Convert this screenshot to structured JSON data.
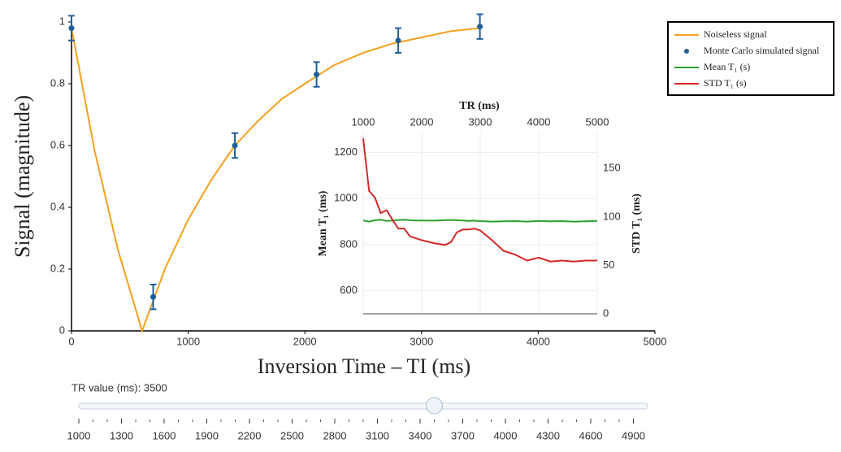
{
  "chart_data": [
    {
      "type": "line",
      "xlabel": "Inversion Time – TI (ms)",
      "ylabel": "Signal (magnitude)",
      "xlim": [
        0,
        5000
      ],
      "xticks": [
        0,
        1000,
        2000,
        3000,
        4000,
        5000
      ],
      "ylim": [
        0,
        1
      ],
      "yticks": [
        0,
        0.2,
        0.4,
        0.6,
        0.8,
        1
      ],
      "grid": false,
      "legend": "outside-right",
      "series": [
        {
          "name": "Noiseless signal",
          "type": "line",
          "color": "#f5a11f",
          "x": [
            0,
            200,
            400,
            605,
            800,
            1000,
            1200,
            1400,
            1600,
            1800,
            2000,
            2250,
            2500,
            2750,
            3000,
            3250,
            3500
          ],
          "values": [
            0.98,
            0.58,
            0.26,
            0,
            0.2,
            0.36,
            0.49,
            0.6,
            0.68,
            0.75,
            0.8,
            0.86,
            0.9,
            0.93,
            0.95,
            0.97,
            0.98
          ]
        },
        {
          "name": "Monte Carlo simulated signal",
          "type": "scatter",
          "color": "#1f5f9a",
          "x": [
            0,
            700,
            1400,
            2100,
            2800,
            3500
          ],
          "values": [
            0.98,
            0.11,
            0.6,
            0.83,
            0.94,
            0.985
          ],
          "errors": [
            0.04,
            0.04,
            0.04,
            0.04,
            0.04,
            0.04
          ]
        }
      ]
    },
    {
      "type": "line",
      "xlabel": "TR (ms)",
      "ylabel": "Mean T₁ (ms)",
      "y2label": "STD T₁ (ms)",
      "xaxis_position": "top",
      "xlim": [
        1000,
        5000
      ],
      "xticks": [
        1000,
        2000,
        3000,
        4000,
        5000
      ],
      "ylim": [
        500,
        1290
      ],
      "yticks": [
        600,
        800,
        1000,
        1200
      ],
      "y2lim": [
        0,
        188
      ],
      "y2ticks": [
        0,
        50,
        100,
        150
      ],
      "grid": true,
      "x": [
        1000,
        1100,
        1200,
        1300,
        1400,
        1500,
        1600,
        1700,
        1800,
        1900,
        2000,
        2200,
        2400,
        2500,
        2600,
        2700,
        2800,
        2900,
        3000,
        3200,
        3400,
        3600,
        3800,
        4000,
        4200,
        4400,
        4600,
        4800,
        5000
      ],
      "series": [
        {
          "name": "Mean T₁ (s)",
          "color": "#2ca02c",
          "axis": "y",
          "values": [
            905,
            900,
            906,
            908,
            903,
            904,
            907,
            908,
            906,
            905,
            905,
            904,
            906,
            907,
            906,
            905,
            903,
            904,
            902,
            900,
            901,
            902,
            900,
            903,
            901,
            902,
            900,
            901,
            903
          ]
        },
        {
          "name": "STD T₁ (s)",
          "color": "#d62728",
          "axis": "y2",
          "values": [
            181,
            127,
            120,
            104,
            107,
            97,
            88,
            88,
            80,
            78,
            76,
            73,
            71,
            74,
            84,
            87,
            87,
            88,
            86,
            76,
            65,
            61,
            55,
            58,
            54,
            55,
            54,
            55,
            55
          ]
        }
      ]
    }
  ],
  "slider": {
    "label": "TR value (ms): 3500",
    "value": 3500,
    "range": [
      1000,
      5000
    ],
    "ticks": [
      1000,
      1300,
      1600,
      1900,
      2200,
      2500,
      2800,
      3100,
      3400,
      3700,
      4000,
      4300,
      4600,
      4900
    ]
  }
}
